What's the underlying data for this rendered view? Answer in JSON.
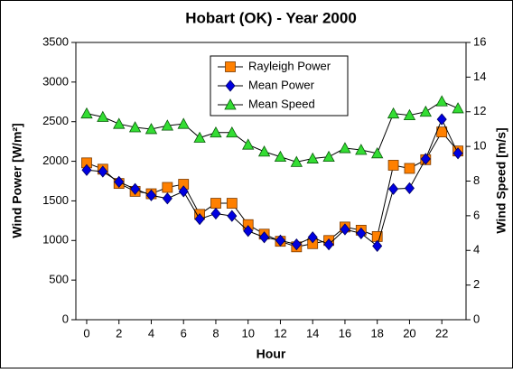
{
  "chart_data": {
    "type": "line",
    "title": "Hobart (OK) - Year 2000",
    "x_label": "Hour",
    "y_label": "Wind Power [W/m²]",
    "y2_label": "Wind Speed [m/s]",
    "x": [
      0,
      1,
      2,
      3,
      4,
      5,
      6,
      7,
      8,
      9,
      10,
      11,
      12,
      13,
      14,
      15,
      16,
      17,
      18,
      19,
      20,
      21,
      22,
      23
    ],
    "xlim": [
      -0.67,
      23.5
    ],
    "xticks": [
      0,
      2,
      4,
      6,
      8,
      10,
      12,
      14,
      16,
      18,
      20,
      22
    ],
    "ylim": [
      0,
      3500
    ],
    "yticks": [
      0,
      500,
      1000,
      1500,
      2000,
      2500,
      3000,
      3500
    ],
    "y2lim": [
      0,
      16
    ],
    "y2ticks": [
      0,
      2,
      4,
      6,
      8,
      10,
      12,
      14,
      16
    ],
    "grid": false,
    "legend": "top-center",
    "series": [
      {
        "name": "Rayleigh Power",
        "color": "#ff8000",
        "marker": "square",
        "values": [
          1980,
          1900,
          1720,
          1620,
          1590,
          1670,
          1710,
          1330,
          1470,
          1470,
          1200,
          1080,
          990,
          920,
          960,
          1000,
          1170,
          1130,
          1050,
          1950,
          1910,
          2020,
          2370,
          2130
        ]
      },
      {
        "name": "Mean Power",
        "color": "#0000e0",
        "marker": "diamond",
        "values": [
          1890,
          1870,
          1740,
          1650,
          1570,
          1530,
          1620,
          1270,
          1340,
          1310,
          1120,
          1040,
          1000,
          950,
          1040,
          950,
          1140,
          1090,
          930,
          1650,
          1660,
          2030,
          2530,
          2100
        ]
      },
      {
        "name": "Mean Speed",
        "color": "#33dd33",
        "marker": "triangle",
        "axis": "y2",
        "values": [
          11.9,
          11.7,
          11.3,
          11.1,
          11.0,
          11.2,
          11.3,
          10.5,
          10.8,
          10.8,
          10.1,
          9.7,
          9.4,
          9.1,
          9.3,
          9.4,
          9.9,
          9.8,
          9.6,
          11.9,
          11.8,
          12.0,
          12.6,
          12.2
        ]
      }
    ]
  }
}
